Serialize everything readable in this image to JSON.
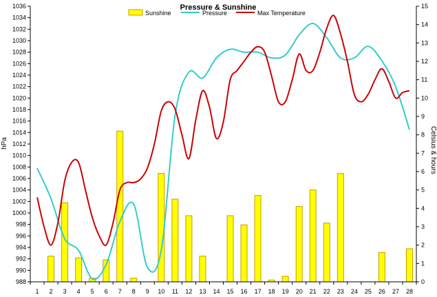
{
  "chart_data": {
    "type": "bar+line",
    "title": "Pressure & Sunshine",
    "left_axis_label": "hPa",
    "right_axis_label": "Celsius & hours",
    "x_labels": [
      "1",
      "2",
      "3",
      "4",
      "5",
      "6",
      "7",
      "8",
      "9",
      "10",
      "11",
      "12",
      "13",
      "14",
      "15",
      "16",
      "17",
      "18",
      "19",
      "20",
      "21",
      "22",
      "23",
      "24",
      "25",
      "26",
      "27",
      "28"
    ],
    "y_left": {
      "min": 988,
      "max": 1036,
      "step": 2
    },
    "y_right": {
      "min": 0,
      "max": 15,
      "step": 1
    },
    "legend": [
      "Sunshine",
      "Pressure",
      "Max Temperature"
    ],
    "grid": false,
    "legend_position": "top",
    "series": [
      {
        "name": "Sunshine",
        "kind": "bar",
        "axis": "right",
        "color": "#ffff00",
        "stroke": "#cc9900",
        "x": [
          2,
          3,
          4,
          5,
          6,
          7,
          8,
          10,
          11,
          12,
          13,
          15,
          16,
          17,
          18,
          19,
          20,
          21,
          22,
          23,
          26,
          28
        ],
        "values": [
          1.4,
          4.3,
          1.3,
          0.2,
          1.2,
          8.2,
          0.2,
          5.9,
          4.5,
          3.6,
          1.4,
          3.6,
          3.1,
          4.7,
          0.1,
          0.3,
          4.1,
          5.0,
          3.2,
          5.9,
          1.6,
          1.8
        ]
      },
      {
        "name": "Pressure",
        "kind": "line",
        "axis": "left",
        "color": "#33cccc",
        "x": [
          1,
          2,
          3,
          4,
          5,
          6,
          7,
          8,
          9,
          10,
          11,
          12,
          13,
          14,
          15,
          16,
          17,
          18,
          19,
          20,
          21,
          22,
          23,
          24,
          25,
          26,
          27,
          28
        ],
        "values": [
          1007.8,
          1002.5,
          995.5,
          993.5,
          988.5,
          991.0,
          998.5,
          1001.5,
          990.5,
          993.5,
          1017.0,
          1024.5,
          1023.5,
          1027.0,
          1028.5,
          1028.0,
          1028.0,
          1027.0,
          1027.5,
          1031.0,
          1033.0,
          1030.5,
          1027.0,
          1027.0,
          1029.0,
          1026.5,
          1022.0,
          1014.5
        ]
      },
      {
        "name": "Max Temperature",
        "kind": "line",
        "axis": "right",
        "color": "#cc0000",
        "x": [
          1,
          1.5,
          2,
          2.5,
          3,
          3.5,
          4,
          4.5,
          5,
          5.5,
          6,
          6.5,
          7,
          7.5,
          8,
          8.5,
          9,
          9.5,
          10,
          10.5,
          11,
          11.5,
          12,
          12.5,
          13,
          13.5,
          14,
          14.5,
          15,
          15.5,
          16,
          16.5,
          17,
          17.5,
          18,
          18.5,
          19,
          19.5,
          20,
          20.5,
          21,
          21.5,
          22,
          22.5,
          23,
          23.5,
          24,
          24.5,
          25,
          25.5,
          26,
          26.5,
          27,
          27.5,
          28
        ],
        "values": [
          4.6,
          3.0,
          2.0,
          3.2,
          5.5,
          6.5,
          6.5,
          5.0,
          3.5,
          2.5,
          2.0,
          3.2,
          5.0,
          5.4,
          5.4,
          5.6,
          6.2,
          7.5,
          9.3,
          9.8,
          9.4,
          8.0,
          6.7,
          8.8,
          10.4,
          9.5,
          7.8,
          8.7,
          11.0,
          11.5,
          12.0,
          12.5,
          12.8,
          12.5,
          11.2,
          9.8,
          9.8,
          11.0,
          12.4,
          11.5,
          11.5,
          12.5,
          13.8,
          14.5,
          13.5,
          12.0,
          10.2,
          9.8,
          10.2,
          11.0,
          11.6,
          10.9,
          10.0,
          10.3,
          10.4
        ]
      }
    ]
  }
}
